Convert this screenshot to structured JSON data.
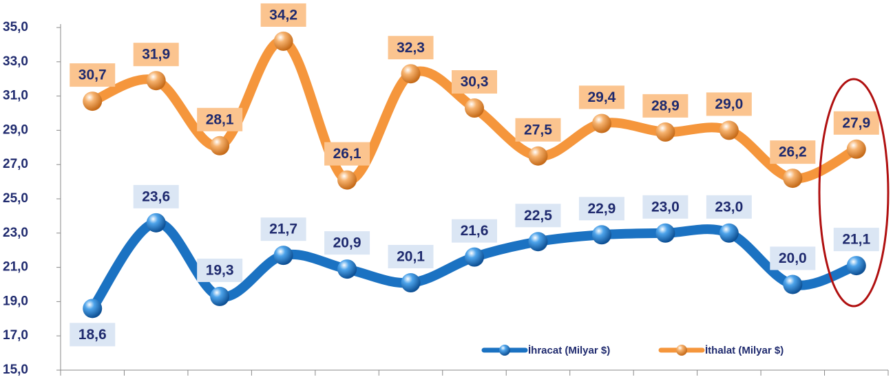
{
  "chart_data": {
    "type": "line",
    "categories": [
      null,
      null,
      null,
      null,
      null,
      null,
      null,
      null,
      null,
      null,
      null,
      null,
      null
    ],
    "series": [
      {
        "name": "İhracat (Milyar $)",
        "color": "#1b72c2",
        "values": [
          18.6,
          23.6,
          19.3,
          21.7,
          20.9,
          20.1,
          21.6,
          22.5,
          22.9,
          23.0,
          23.0,
          20.0,
          21.1
        ],
        "value_labels": [
          "18,6",
          "23,6",
          "19,3",
          "21,7",
          "20,9",
          "20,1",
          "21,6",
          "22,5",
          "22,9",
          "23,0",
          "23,0",
          "20,0",
          "21,1"
        ]
      },
      {
        "name": "İthalat (Milyar $)",
        "color": "#f5963c",
        "values": [
          30.7,
          31.9,
          28.1,
          34.2,
          26.1,
          32.3,
          30.3,
          27.5,
          29.4,
          28.9,
          29.0,
          26.2,
          27.9
        ],
        "value_labels": [
          "30,7",
          "31,9",
          "28,1",
          "34,2",
          "26,1",
          "32,3",
          "30,3",
          "27,5",
          "29,4",
          "28,9",
          "29,0",
          "26,2",
          "27,9"
        ]
      }
    ],
    "ylim": [
      15,
      35
    ],
    "yticks": [
      {
        "value": 15,
        "label": "15,0"
      },
      {
        "value": 17,
        "label": "17,0"
      },
      {
        "value": 19,
        "label": "19,0"
      },
      {
        "value": 21,
        "label": "21,0"
      },
      {
        "value": 23,
        "label": "23,0"
      },
      {
        "value": 25,
        "label": "25,0"
      },
      {
        "value": 27,
        "label": "27,0"
      },
      {
        "value": 29,
        "label": "29,0"
      },
      {
        "value": 31,
        "label": "31,0"
      },
      {
        "value": 33,
        "label": "33,0"
      },
      {
        "value": 35,
        "label": "35,0"
      }
    ],
    "legend": "lower right"
  }
}
